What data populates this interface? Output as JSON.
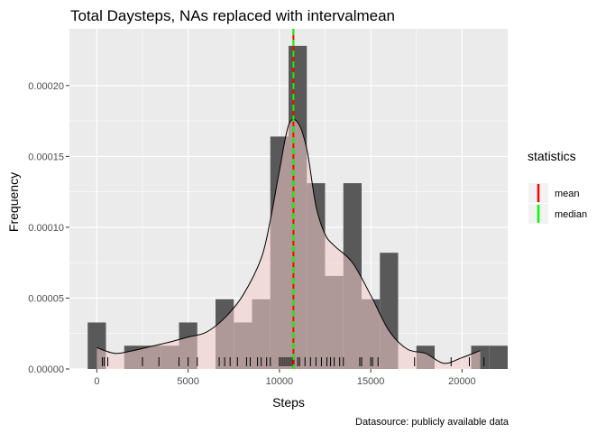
{
  "chart_data": {
    "type": "bar",
    "title": "Total Daysteps, NAs replaced with intervalmean",
    "xlabel": "Steps",
    "ylabel": "Frequency",
    "caption": "Datasource: publicly available data",
    "xlim": [
      -1500,
      22500
    ],
    "ylim": [
      0,
      0.00024
    ],
    "x_ticks": [
      0,
      5000,
      10000,
      15000,
      20000
    ],
    "x_tick_labels": [
      "0",
      "5000",
      "10000",
      "15000",
      "20000"
    ],
    "y_ticks": [
      0,
      5e-05,
      0.0001,
      0.00015,
      0.0002
    ],
    "y_tick_labels": [
      "0.00000",
      "0.00005",
      "0.00010",
      "0.00015",
      "0.00020"
    ],
    "grid": true,
    "histogram": {
      "bin_width": 1000,
      "bins": [
        {
          "x": 0,
          "value": 3.28e-05
        },
        {
          "x": 1000,
          "value": 0.0
        },
        {
          "x": 2000,
          "value": 1.64e-05
        },
        {
          "x": 3000,
          "value": 1.64e-05
        },
        {
          "x": 4000,
          "value": 1.64e-05
        },
        {
          "x": 5000,
          "value": 3.28e-05
        },
        {
          "x": 6000,
          "value": 0.0
        },
        {
          "x": 7000,
          "value": 4.92e-05
        },
        {
          "x": 8000,
          "value": 3.28e-05
        },
        {
          "x": 9000,
          "value": 4.92e-05
        },
        {
          "x": 10000,
          "value": 0.000164
        },
        {
          "x": 11000,
          "value": 0.000228
        },
        {
          "x": 12000,
          "value": 0.0001311
        },
        {
          "x": 13000,
          "value": 6.56e-05
        },
        {
          "x": 14000,
          "value": 0.0001311
        },
        {
          "x": 15000,
          "value": 4.92e-05
        },
        {
          "x": 16000,
          "value": 8.2e-05
        },
        {
          "x": 17000,
          "value": 0.0
        },
        {
          "x": 18000,
          "value": 1.64e-05
        },
        {
          "x": 19000,
          "value": 0.0
        },
        {
          "x": 20000,
          "value": 0.0
        },
        {
          "x": 21000,
          "value": 1.64e-05
        },
        {
          "x": 22000,
          "value": 1.64e-05
        }
      ]
    },
    "density": {
      "x": [
        0,
        1000,
        2000,
        3000,
        4000,
        5000,
        6000,
        7000,
        8000,
        9000,
        9500,
        10000,
        10500,
        11000,
        11500,
        12000,
        12500,
        13000,
        14000,
        15000,
        16000,
        17000,
        18000,
        19000,
        20000,
        21000
      ],
      "y": [
        1.5e-05,
        1.1e-05,
        1.3e-05,
        1.6e-05,
        1.9e-05,
        2.25e-05,
        2.6e-05,
        3.6e-05,
        5.2e-05,
        7.8e-05,
        0.000105,
        0.00014,
        0.000172,
        0.000174,
        0.000155,
        0.000115,
        9.5e-05,
        8.7e-05,
        7.5e-05,
        5.2e-05,
        2.7e-05,
        1.4e-05,
        1.1e-05,
        4e-06,
        8e-06,
        1.3e-05
      ]
    },
    "rug_x": [
      300,
      400,
      600,
      2500,
      3400,
      4500,
      5000,
      5500,
      6700,
      7000,
      7300,
      7700,
      8200,
      8400,
      8800,
      9000,
      9300,
      9500,
      10000,
      10100,
      10200,
      10300,
      10400,
      10500,
      10600,
      10700,
      10766,
      10800,
      11000,
      11100,
      11400,
      11700,
      12000,
      12300,
      12600,
      12800,
      13000,
      13300,
      13500,
      14400,
      14500,
      15000,
      15100,
      15400,
      17400,
      19400,
      20400,
      21200
    ],
    "reference_lines": [
      {
        "name": "mean",
        "x": 10766,
        "color": "#ff0000",
        "style": "solid"
      },
      {
        "name": "median",
        "x": 10766,
        "color": "#00ff00",
        "style": "dashed"
      }
    ],
    "legend": {
      "title": "statistics",
      "placement": "right",
      "entries": [
        {
          "label": "mean",
          "color": "#ff0000"
        },
        {
          "label": "median",
          "color": "#00ff00"
        }
      ]
    },
    "colors": {
      "panel": "#ebebeb",
      "grid": "#ffffff",
      "bars": "#595959",
      "density_fill": "#f4cccc",
      "density_line": "#000000"
    }
  }
}
